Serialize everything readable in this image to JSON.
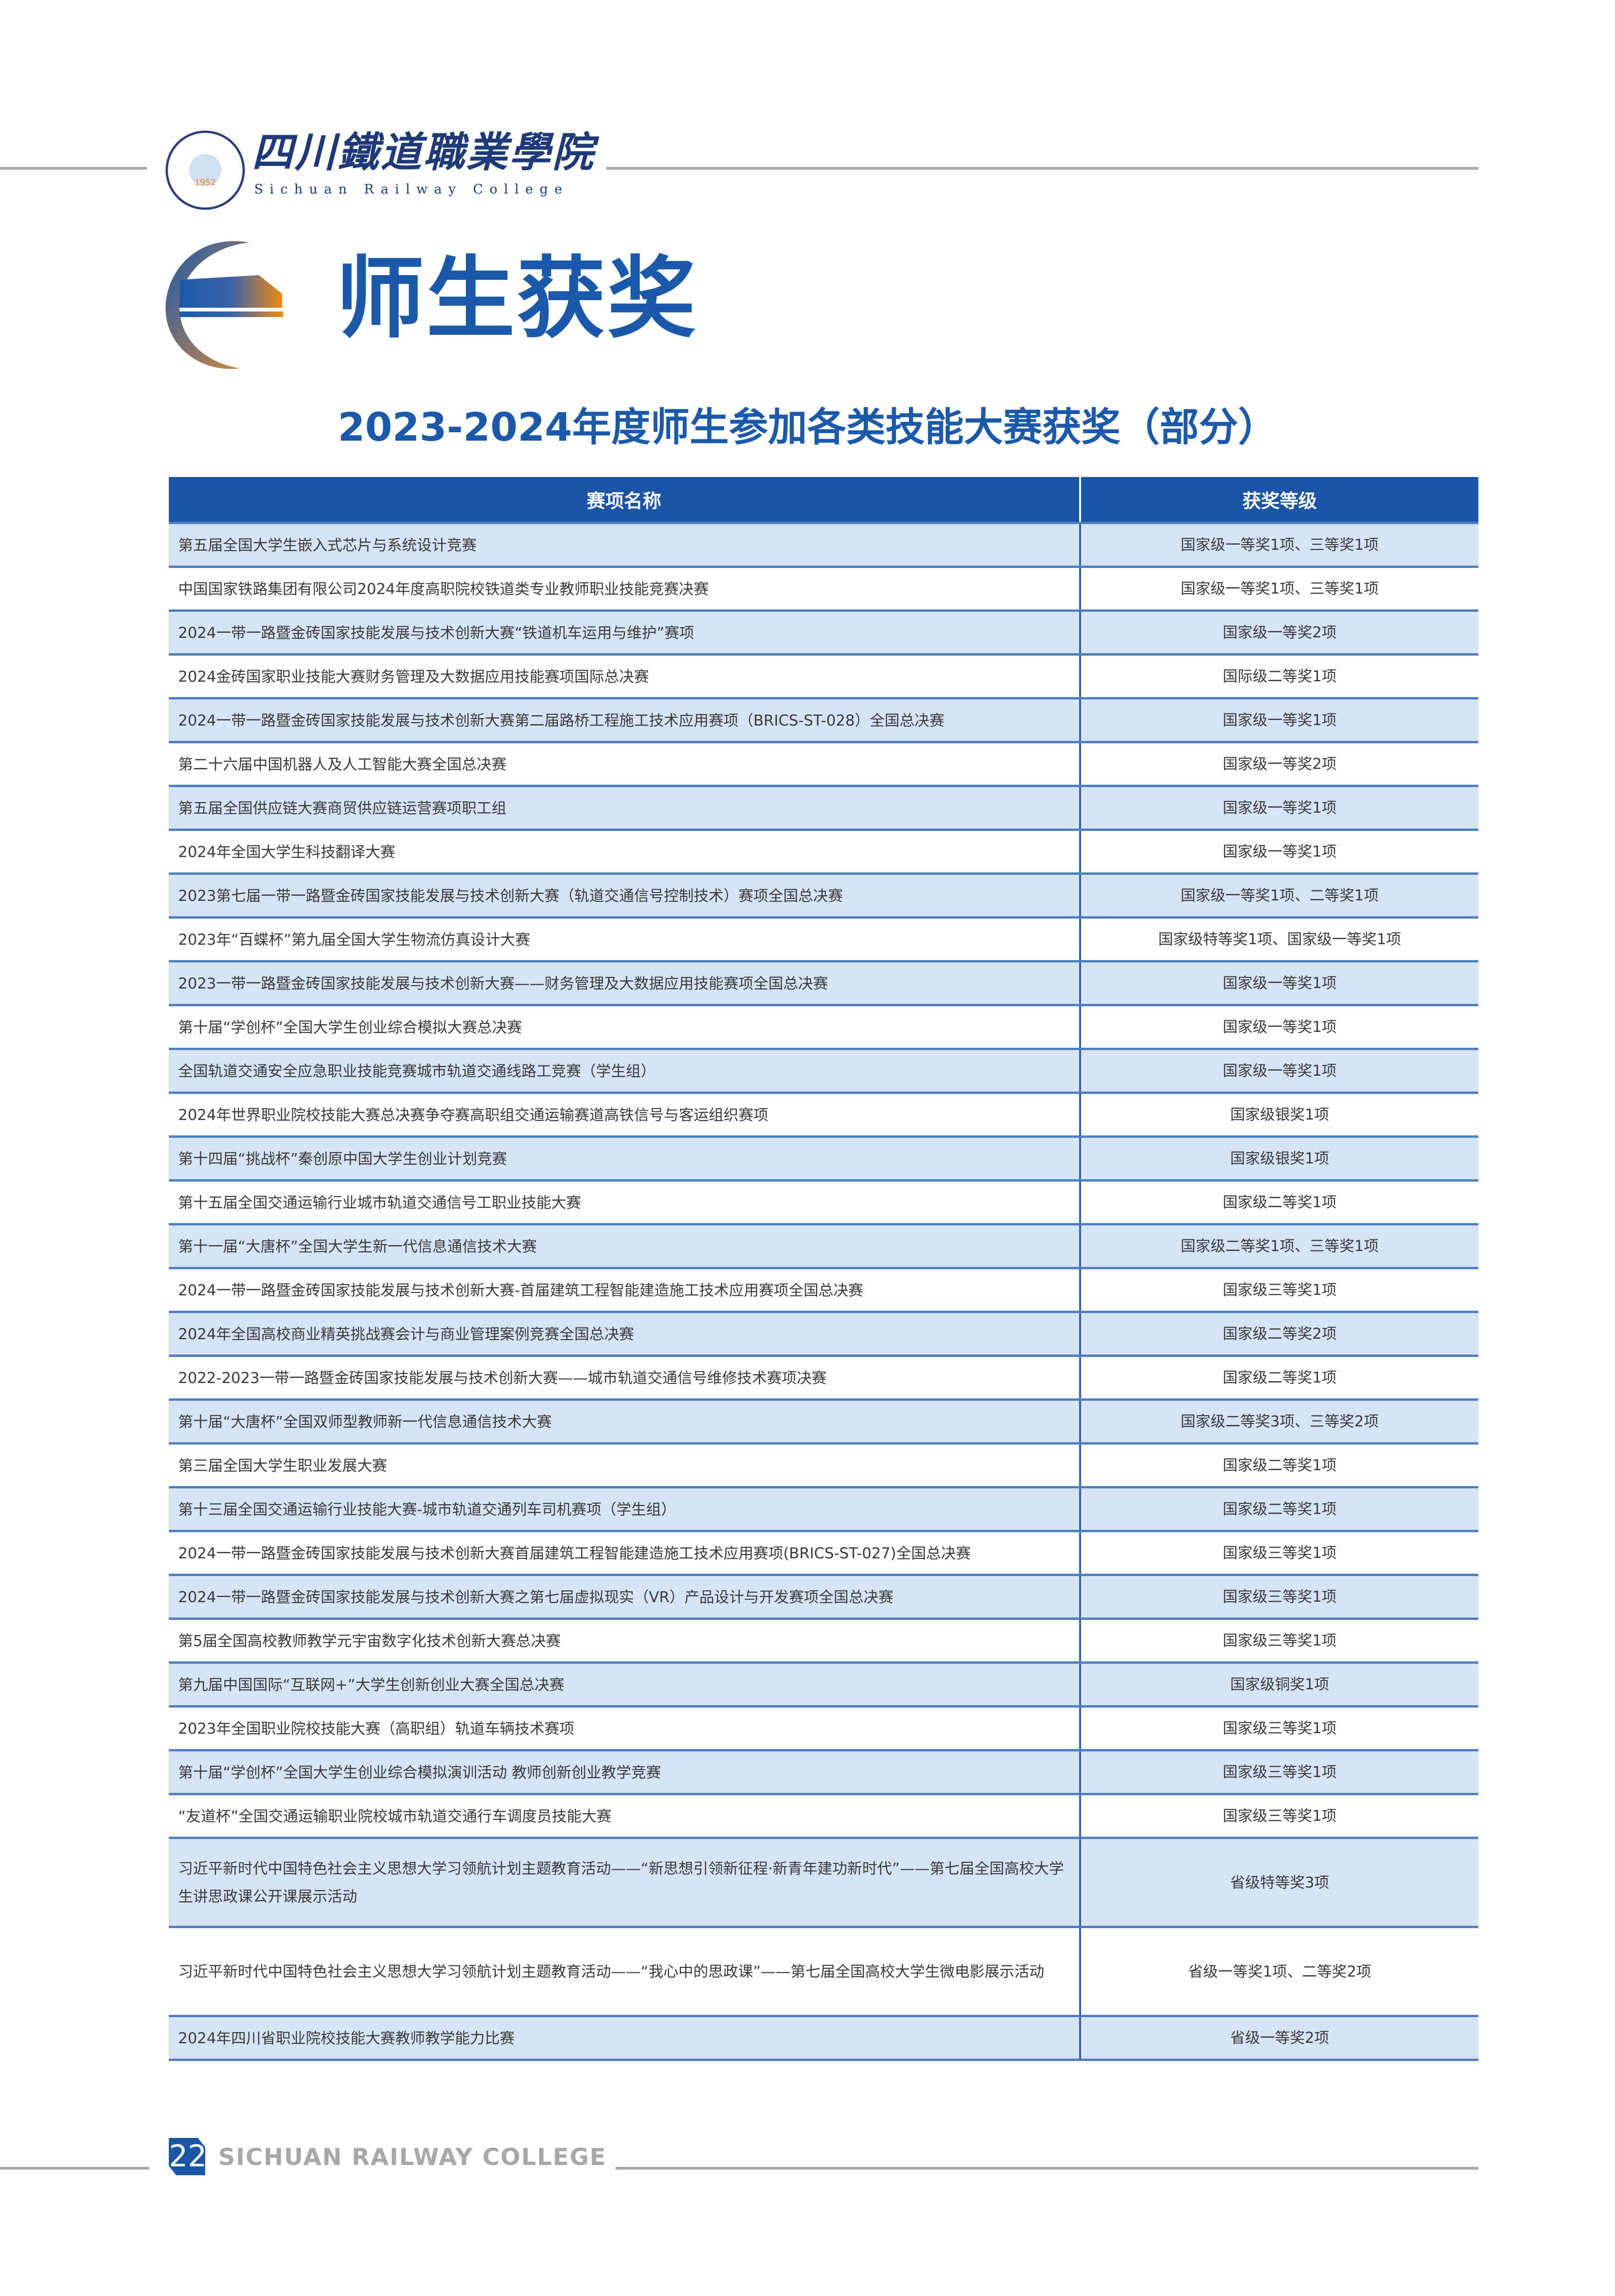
{
  "header": {
    "college_name_cn": "四川鐵道職業學院",
    "college_name_en": "Sichuan Railway College",
    "seal_year": "1952"
  },
  "section": {
    "title": "师生获奖"
  },
  "table": {
    "title": "2023-2024年度师生参加各类技能大赛获奖（部分）",
    "columns": [
      "赛项名称",
      "获奖等级"
    ],
    "rows": [
      {
        "name": "第五届全国大学生嵌入式芯片与系统设计竞赛",
        "award": "国家级一等奖1项、三等奖1项"
      },
      {
        "name": "中国国家铁路集团有限公司2024年度高职院校铁道类专业教师职业技能竞赛决赛",
        "award": "国家级一等奖1项、三等奖1项"
      },
      {
        "name": "2024一带一路暨金砖国家技能发展与技术创新大赛“铁道机车运用与维护”赛项",
        "award": "国家级一等奖2项"
      },
      {
        "name": "2024金砖国家职业技能大赛财务管理及大数据应用技能赛项国际总决赛",
        "award": "国际级二等奖1项"
      },
      {
        "name": "2024一带一路暨金砖国家技能发展与技术创新大赛第二届路桥工程施工技术应用赛项（BRICS-ST-028）全国总决赛",
        "award": "国家级一等奖1项"
      },
      {
        "name": "第二十六届中国机器人及人工智能大赛全国总决赛",
        "award": "国家级一等奖2项"
      },
      {
        "name": "第五届全国供应链大赛商贸供应链运营赛项职工组",
        "award": "国家级一等奖1项"
      },
      {
        "name": "2024年全国大学生科技翻译大赛",
        "award": "国家级一等奖1项"
      },
      {
        "name": "2023第七届一带一路暨金砖国家技能发展与技术创新大赛（轨道交通信号控制技术）赛项全国总决赛",
        "award": "国家级一等奖1项、二等奖1项"
      },
      {
        "name": "2023年“百蝶杯”第九届全国大学生物流仿真设计大赛",
        "award": "国家级特等奖1项、国家级一等奖1项"
      },
      {
        "name": "2023一带一路暨金砖国家技能发展与技术创新大赛——财务管理及大数据应用技能赛项全国总决赛",
        "award": "国家级一等奖1项"
      },
      {
        "name": "第十届“学创杯”全国大学生创业综合模拟大赛总决赛",
        "award": "国家级一等奖1项"
      },
      {
        "name": "全国轨道交通安全应急职业技能竞赛城市轨道交通线路工竞赛（学生组）",
        "award": "国家级一等奖1项"
      },
      {
        "name": "2024年世界职业院校技能大赛总决赛争夺赛高职组交通运输赛道高铁信号与客运组织赛项",
        "award": "国家级银奖1项"
      },
      {
        "name": "第十四届“挑战杯”秦创原中国大学生创业计划竞赛",
        "award": "国家级银奖1项"
      },
      {
        "name": "第十五届全国交通运输行业城市轨道交通信号工职业技能大赛",
        "award": "国家级二等奖1项"
      },
      {
        "name": "第十一届“大唐杯”全国大学生新一代信息通信技术大赛",
        "award": "国家级二等奖1项、三等奖1项"
      },
      {
        "name": "2024一带一路暨金砖国家技能发展与技术创新大赛-首届建筑工程智能建造施工技术应用赛项全国总决赛",
        "award": "国家级三等奖1项"
      },
      {
        "name": "2024年全国高校商业精英挑战赛会计与商业管理案例竞赛全国总决赛",
        "award": "国家级二等奖2项"
      },
      {
        "name": "2022-2023一带一路暨金砖国家技能发展与技术创新大赛——城市轨道交通信号维修技术赛项决赛",
        "award": "国家级二等奖1项"
      },
      {
        "name": "第十届“大唐杯”全国双师型教师新一代信息通信技术大赛",
        "award": "国家级二等奖3项、三等奖2项"
      },
      {
        "name": "第三届全国大学生职业发展大赛",
        "award": "国家级二等奖1项"
      },
      {
        "name": "第十三届全国交通运输行业技能大赛-城市轨道交通列车司机赛项（学生组）",
        "award": "国家级二等奖1项"
      },
      {
        "name": "2024一带一路暨金砖国家技能发展与技术创新大赛首届建筑工程智能建造施工技术应用赛项(BRICS-ST-027)全国总决赛",
        "award": "国家级三等奖1项"
      },
      {
        "name": "2024一带一路暨金砖国家技能发展与技术创新大赛之第七届虚拟现实（VR）产品设计与开发赛项全国总决赛",
        "award": "国家级三等奖1项"
      },
      {
        "name": "第5届全国高校教师教学元宇宙数字化技术创新大赛总决赛",
        "award": "国家级三等奖1项"
      },
      {
        "name": "第九届中国国际“互联网+”大学生创新创业大赛全国总决赛",
        "award": "国家级铜奖1项"
      },
      {
        "name": "2023年全国职业院校技能大赛（高职组）轨道车辆技术赛项",
        "award": "国家级三等奖1项"
      },
      {
        "name": "第十届“学创杯”全国大学生创业综合模拟演训活动 教师创新创业教学竞赛",
        "award": "国家级三等奖1项"
      },
      {
        "name": "“友道杯”全国交通运输职业院校城市轨道交通行车调度员技能大赛",
        "award": "国家级三等奖1项"
      },
      {
        "name": "习近平新时代中国特色社会主义思想大学习领航计划主题教育活动——“新思想引领新征程·新青年建功新时代”——第七届全国高校大学生讲思政课公开课展示活动",
        "award": "省级特等奖3项"
      },
      {
        "name": "习近平新时代中国特色社会主义思想大学习领航计划主题教育活动——“我心中的思政课”——第七届全国高校大学生微电影展示活动",
        "award": "省级一等奖1项、二等奖2项"
      },
      {
        "name": "2024年四川省职业院校技能大赛教师教学能力比赛",
        "award": "省级一等奖2项"
      }
    ]
  },
  "footer": {
    "page_number": "22",
    "text": "SICHUAN RAILWAY COLLEGE"
  },
  "colors": {
    "brand_blue": "#1a56a5",
    "row_alt": "#d5e4f4",
    "accent_orange": "#e88a1a"
  }
}
